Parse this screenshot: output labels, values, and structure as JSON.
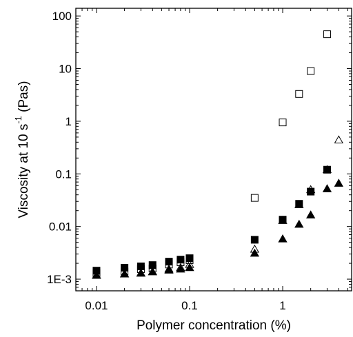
{
  "chart_data": {
    "type": "scatter",
    "xlabel": "Polymer concentration (%)",
    "ylabel": {
      "prefix": "Viscosity at 10 s",
      "exp": "-1",
      "suffix": " (Pas)"
    },
    "xscale": "log",
    "yscale": "log",
    "xlim": [
      0.006,
      5.5
    ],
    "ylim": [
      0.0006,
      140
    ],
    "x_ticks": [
      {
        "value": 0.01,
        "label": "0.01"
      },
      {
        "value": 0.1,
        "label": "0.1"
      },
      {
        "value": 1,
        "label": "1"
      }
    ],
    "y_ticks": [
      {
        "value": 0.001,
        "label": "1E-3"
      },
      {
        "value": 0.01,
        "label": "0.01"
      },
      {
        "value": 0.1,
        "label": "0.1"
      },
      {
        "value": 1,
        "label": "1"
      },
      {
        "value": 10,
        "label": "10"
      },
      {
        "value": 100,
        "label": "100"
      }
    ],
    "grid": false,
    "series": [
      {
        "marker": "square-filled",
        "x": [
          0.01,
          0.02,
          0.03,
          0.04,
          0.06,
          0.08,
          0.1,
          0.5,
          1.0,
          1.5,
          2.0,
          3.0
        ],
        "y": [
          0.00145,
          0.00165,
          0.00175,
          0.00185,
          0.00215,
          0.00235,
          0.0025,
          0.0056,
          0.0135,
          0.027,
          0.046,
          0.12
        ]
      },
      {
        "marker": "square-open",
        "x": [
          0.01,
          0.02,
          0.03,
          0.04,
          0.06,
          0.08,
          0.1,
          0.5,
          1.0,
          1.5,
          2.0,
          3.0
        ],
        "y": [
          0.0013,
          0.0014,
          0.00155,
          0.0016,
          0.0019,
          0.0021,
          0.0023,
          0.035,
          0.95,
          3.3,
          9.0,
          45
        ]
      },
      {
        "marker": "triangle-open",
        "x": [
          0.01,
          0.02,
          0.03,
          0.04,
          0.06,
          0.08,
          0.1,
          0.5,
          1.0,
          1.5,
          2.0,
          3.0,
          4.0
        ],
        "y": [
          0.00118,
          0.00125,
          0.0013,
          0.00138,
          0.00155,
          0.00165,
          0.0019,
          0.0037,
          0.013,
          0.026,
          0.05,
          0.12,
          0.44
        ]
      },
      {
        "marker": "triangle-filled",
        "x": [
          0.01,
          0.02,
          0.03,
          0.04,
          0.06,
          0.08,
          0.1,
          0.5,
          1.0,
          1.5,
          2.0,
          3.0,
          4.0
        ],
        "y": [
          0.00118,
          0.00125,
          0.0013,
          0.00138,
          0.00148,
          0.00155,
          0.00165,
          0.0031,
          0.0058,
          0.011,
          0.0165,
          0.052,
          0.066
        ]
      }
    ]
  }
}
